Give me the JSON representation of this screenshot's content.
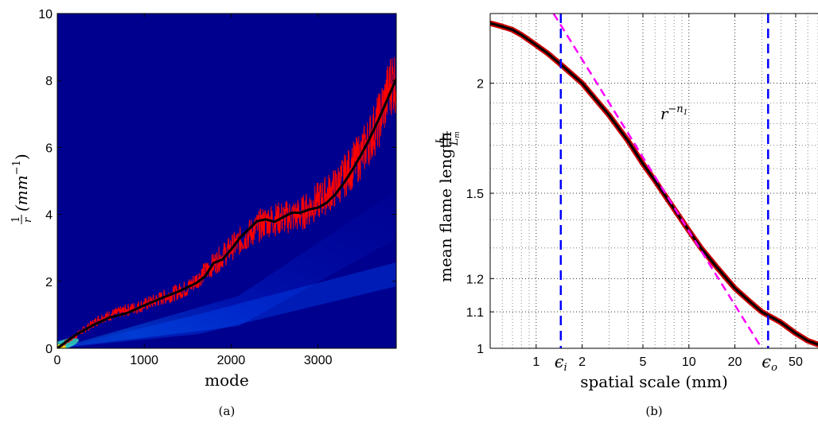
{
  "chart_data": [
    {
      "type": "heatmap",
      "panel_label": "(a)",
      "xlabel": "mode",
      "ylabel_frac_num": "1",
      "ylabel_frac_den": "r",
      "ylabel_rest": "(mm",
      "ylabel_exp": "−1",
      "ylabel_close": ")",
      "xlim": [
        0,
        3900
      ],
      "ylim": [
        0,
        10
      ],
      "xticks": [
        0,
        1000,
        2000,
        3000
      ],
      "xtick_labels": [
        "0",
        "1000",
        "2000",
        "3000"
      ],
      "yticks": [
        0,
        2,
        4,
        6,
        8,
        10
      ],
      "ytick_labels": [
        "0",
        "2",
        "4",
        "6",
        "8",
        "10"
      ],
      "background_color": "#00008f",
      "colormap": "jet",
      "series": [
        {
          "color": "#ff0000",
          "style": "noisy-line",
          "x": [
            0,
            500,
            1000,
            1500,
            2000,
            2400,
            2800,
            3200,
            3500,
            3700,
            3850
          ],
          "y": [
            0,
            0.9,
            1.3,
            1.8,
            3.0,
            3.8,
            4.0,
            4.8,
            5.8,
            6.8,
            8.0
          ]
        },
        {
          "color": "#000000",
          "style": "smooth-line",
          "x": [
            0,
            200,
            400,
            600,
            800,
            1000,
            1200,
            1400,
            1600,
            1700,
            1800,
            1900,
            2000,
            2100,
            2200,
            2300,
            2400,
            2500,
            2600,
            2700,
            2800,
            2900,
            3000,
            3100,
            3200,
            3300,
            3400,
            3500,
            3600,
            3700,
            3800,
            3900
          ],
          "y": [
            0,
            0.38,
            0.68,
            0.92,
            1.05,
            1.28,
            1.5,
            1.7,
            1.95,
            2.15,
            2.55,
            2.65,
            2.95,
            3.3,
            3.55,
            3.8,
            3.85,
            3.78,
            3.92,
            4.05,
            4.05,
            4.15,
            4.2,
            4.35,
            4.6,
            4.95,
            5.35,
            5.8,
            6.3,
            6.85,
            7.45,
            8.05
          ]
        }
      ]
    },
    {
      "type": "line",
      "panel_label": "(b)",
      "xlabel": "spatial scale (mm)",
      "ylabel": "mean flame length",
      "ylabel_frac_num": "L",
      "ylabel_frac_den": "L",
      "ylabel_frac_den_sub": "m",
      "x_scale": "log",
      "y_scale": "log",
      "xlim": [
        0.5,
        70
      ],
      "ylim": [
        1,
        2.4
      ],
      "xticks": [
        1,
        2,
        5,
        10,
        20,
        50
      ],
      "xtick_labels": [
        "1",
        "2",
        "5",
        "10",
        "20",
        "50"
      ],
      "yticks": [
        1,
        1.1,
        1.2,
        1.5,
        2
      ],
      "ytick_labels": [
        "1",
        "1.1",
        "1.2",
        "1.5",
        "2"
      ],
      "grid": true,
      "grid_style": "dotted",
      "series": [
        {
          "color": "#cc0000",
          "style": "thick-line-with-markers",
          "x": [
            0.5,
            0.6,
            0.7,
            0.8,
            1.0,
            1.2,
            1.5,
            2,
            2.5,
            3,
            4,
            5,
            6,
            7,
            8,
            10,
            12,
            15,
            20,
            25,
            30,
            40,
            50,
            60,
            70
          ],
          "y": [
            2.34,
            2.32,
            2.3,
            2.27,
            2.21,
            2.16,
            2.09,
            2.0,
            1.91,
            1.84,
            1.72,
            1.62,
            1.55,
            1.49,
            1.44,
            1.36,
            1.3,
            1.24,
            1.17,
            1.13,
            1.1,
            1.07,
            1.04,
            1.02,
            1.01
          ]
        },
        {
          "color": "#ff00ff",
          "style": "dashed",
          "x": [
            1.3,
            30
          ],
          "y": [
            2.4,
            1.0
          ]
        }
      ],
      "vlines": [
        {
          "x": 1.45,
          "color": "#0000ff",
          "style": "dashed",
          "label_main": "ϵ",
          "label_sub": "i"
        },
        {
          "x": 33,
          "color": "#0000ff",
          "style": "dashed",
          "label_main": "ϵ",
          "label_sub": "o"
        }
      ],
      "annotation": {
        "text_main": "r",
        "text_sup": "−n",
        "text_sup_sub": "1",
        "color": "#ff00ff",
        "x": 6.5,
        "y": 1.82
      }
    }
  ]
}
